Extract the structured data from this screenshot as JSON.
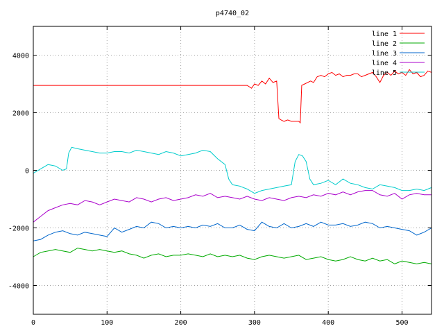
{
  "chart_data": {
    "type": "line",
    "title": "p4740_02",
    "xlabel": "",
    "ylabel": "",
    "xlim": [
      0,
      540
    ],
    "ylim": [
      -5000,
      5000
    ],
    "x_ticks": [
      0,
      100,
      200,
      300,
      400,
      500
    ],
    "y_ticks": [
      -4000,
      -2000,
      0,
      2000,
      4000
    ],
    "grid": true,
    "legend_position": "top-right",
    "series": [
      {
        "name": "line 1",
        "color": "#ff0000",
        "x": [
          0,
          290,
          296,
          300,
          305,
          310,
          315,
          320,
          325,
          330,
          333,
          336,
          340,
          345,
          350,
          355,
          360,
          362,
          364,
          368,
          372,
          376,
          380,
          385,
          390,
          395,
          400,
          405,
          410,
          415,
          420,
          425,
          430,
          435,
          440,
          445,
          450,
          455,
          460,
          465,
          470,
          475,
          480,
          485,
          490,
          495,
          500,
          505,
          510,
          515,
          520,
          525,
          530,
          535,
          540
        ],
        "values": [
          2950,
          2950,
          2850,
          3000,
          2950,
          3100,
          3000,
          3200,
          3050,
          3100,
          1800,
          1750,
          1700,
          1750,
          1700,
          1700,
          1700,
          1650,
          2950,
          3000,
          3050,
          3100,
          3050,
          3250,
          3300,
          3250,
          3350,
          3400,
          3300,
          3350,
          3250,
          3300,
          3300,
          3350,
          3350,
          3250,
          3300,
          3350,
          3400,
          3250,
          3050,
          3300,
          3400,
          3300,
          3450,
          3350,
          3400,
          3300,
          3500,
          3350,
          3400,
          3250,
          3300,
          3450,
          3400
        ]
      },
      {
        "name": "line 2",
        "color": "#00aa00",
        "x": [
          0,
          10,
          20,
          30,
          40,
          50,
          60,
          70,
          80,
          90,
          100,
          110,
          120,
          130,
          140,
          150,
          160,
          170,
          180,
          190,
          200,
          210,
          220,
          230,
          240,
          250,
          260,
          270,
          280,
          290,
          300,
          310,
          320,
          330,
          340,
          350,
          360,
          370,
          380,
          390,
          400,
          410,
          420,
          430,
          440,
          450,
          460,
          470,
          480,
          490,
          500,
          510,
          520,
          530,
          540
        ],
        "values": [
          -3000,
          -2850,
          -2800,
          -2750,
          -2800,
          -2850,
          -2700,
          -2750,
          -2800,
          -2750,
          -2800,
          -2850,
          -2800,
          -2900,
          -2950,
          -3050,
          -2950,
          -2900,
          -3000,
          -2950,
          -2950,
          -2900,
          -2950,
          -3000,
          -2900,
          -3000,
          -2950,
          -3000,
          -2950,
          -3050,
          -3100,
          -3000,
          -2950,
          -3000,
          -3050,
          -3000,
          -2950,
          -3100,
          -3050,
          -3000,
          -3100,
          -3150,
          -3100,
          -3000,
          -3100,
          -3150,
          -3050,
          -3150,
          -3100,
          -3250,
          -3150,
          -3200,
          -3250,
          -3200,
          -3250
        ]
      },
      {
        "name": "line 3",
        "color": "#0066cc",
        "x": [
          0,
          10,
          20,
          30,
          40,
          50,
          60,
          70,
          80,
          90,
          100,
          110,
          120,
          130,
          140,
          150,
          160,
          170,
          180,
          190,
          200,
          210,
          220,
          230,
          240,
          250,
          260,
          270,
          280,
          290,
          300,
          310,
          320,
          330,
          340,
          350,
          360,
          370,
          380,
          390,
          400,
          410,
          420,
          430,
          440,
          450,
          460,
          470,
          480,
          490,
          500,
          510,
          520,
          530,
          540
        ],
        "values": [
          -2450,
          -2400,
          -2250,
          -2150,
          -2100,
          -2200,
          -2250,
          -2150,
          -2200,
          -2250,
          -2300,
          -2000,
          -2150,
          -2050,
          -1950,
          -2000,
          -1800,
          -1850,
          -2000,
          -1950,
          -2000,
          -1950,
          -2000,
          -1900,
          -1950,
          -1850,
          -2000,
          -2000,
          -1900,
          -2050,
          -2100,
          -1800,
          -1950,
          -2000,
          -1850,
          -2000,
          -1950,
          -1850,
          -1950,
          -1800,
          -1900,
          -1900,
          -1850,
          -1950,
          -1900,
          -1800,
          -1850,
          -2000,
          -1950,
          -2000,
          -2050,
          -2100,
          -2250,
          -2150,
          -2000
        ]
      },
      {
        "name": "line 4",
        "color": "#aa00cc",
        "x": [
          0,
          10,
          20,
          30,
          40,
          50,
          60,
          70,
          80,
          90,
          100,
          110,
          120,
          130,
          140,
          150,
          160,
          170,
          180,
          190,
          200,
          210,
          220,
          230,
          240,
          250,
          260,
          270,
          280,
          290,
          300,
          310,
          320,
          330,
          340,
          350,
          360,
          370,
          380,
          390,
          400,
          410,
          420,
          430,
          440,
          450,
          460,
          470,
          480,
          490,
          500,
          510,
          520,
          530,
          540
        ],
        "values": [
          -1800,
          -1600,
          -1400,
          -1300,
          -1200,
          -1150,
          -1200,
          -1050,
          -1100,
          -1200,
          -1100,
          -1000,
          -1050,
          -1100,
          -950,
          -1000,
          -1100,
          -1000,
          -950,
          -1050,
          -1000,
          -950,
          -850,
          -900,
          -800,
          -950,
          -900,
          -950,
          -1000,
          -900,
          -1000,
          -1050,
          -950,
          -1000,
          -1050,
          -950,
          -900,
          -950,
          -850,
          -900,
          -800,
          -850,
          -750,
          -850,
          -750,
          -700,
          -700,
          -850,
          -900,
          -800,
          -1000,
          -850,
          -800,
          -850,
          -850
        ]
      },
      {
        "name": "line 5",
        "color": "#00cccc",
        "x": [
          0,
          10,
          20,
          30,
          40,
          45,
          48,
          52,
          60,
          70,
          80,
          90,
          100,
          110,
          120,
          130,
          140,
          150,
          160,
          170,
          180,
          190,
          200,
          210,
          220,
          230,
          240,
          250,
          260,
          265,
          270,
          280,
          290,
          300,
          310,
          320,
          330,
          340,
          350,
          355,
          360,
          365,
          370,
          375,
          380,
          390,
          400,
          410,
          420,
          430,
          440,
          450,
          460,
          470,
          480,
          490,
          500,
          510,
          520,
          530,
          540
        ],
        "values": [
          -100,
          50,
          200,
          150,
          0,
          50,
          600,
          800,
          750,
          700,
          650,
          600,
          600,
          650,
          650,
          600,
          700,
          650,
          600,
          550,
          650,
          600,
          500,
          550,
          600,
          700,
          650,
          400,
          200,
          -300,
          -500,
          -550,
          -650,
          -800,
          -700,
          -650,
          -600,
          -550,
          -500,
          300,
          550,
          500,
          300,
          -300,
          -500,
          -450,
          -350,
          -500,
          -300,
          -450,
          -500,
          -600,
          -650,
          -500,
          -550,
          -600,
          -700,
          -700,
          -650,
          -700,
          -600
        ]
      }
    ]
  }
}
